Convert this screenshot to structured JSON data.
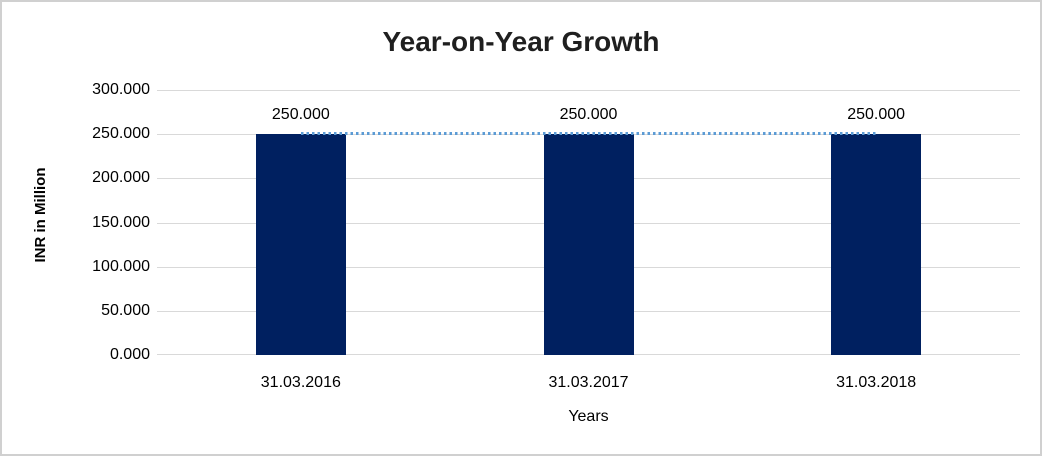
{
  "window": {
    "background_color": "#ffffff",
    "border_color": "#d0d0d0"
  },
  "chart_data": {
    "type": "bar",
    "title": "Year-on-Year Growth",
    "xlabel": "Years",
    "ylabel": "INR in Million",
    "categories": [
      "31.03.2016",
      "31.03.2017",
      "31.03.2018"
    ],
    "series": [
      {
        "name": "bar-series",
        "type": "bar",
        "values": [
          250,
          250,
          250
        ],
        "color": "#002060"
      },
      {
        "name": "trend-line-series",
        "type": "line",
        "line_style": "dotted",
        "values": [
          250,
          250,
          250
        ],
        "color": "#5b9bd5"
      }
    ],
    "data_labels": [
      "250.000",
      "250.000",
      "250.000"
    ],
    "ylim": [
      0,
      300
    ],
    "yticks": {
      "values": [
        0,
        50,
        100,
        150,
        200,
        250,
        300
      ],
      "labels": [
        "0.000",
        "50.000",
        "100.000",
        "150.000",
        "200.000",
        "250.000",
        "300.000"
      ]
    },
    "grid": true,
    "gridline_color": "#d9d9d9",
    "legend_position": "none",
    "title_color": "#1f1f1f",
    "text_color": "#000000"
  }
}
